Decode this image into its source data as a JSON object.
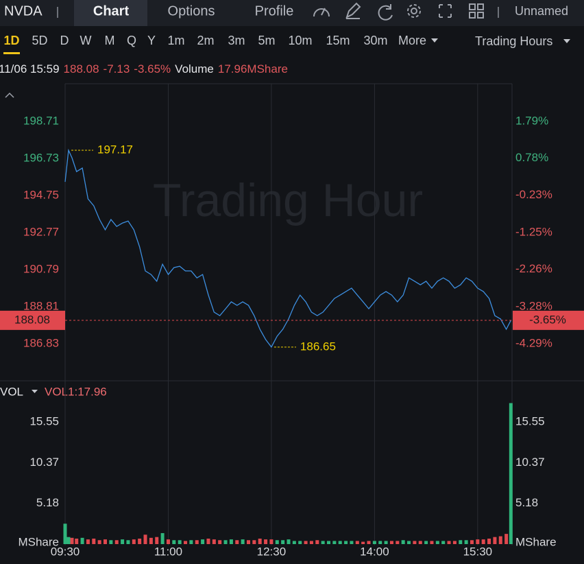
{
  "toolbar": {
    "symbol": "NVDA",
    "tabs": [
      "Chart",
      "Options",
      "Profile"
    ],
    "layout_name": "Unnamed"
  },
  "intervals": {
    "items": [
      "1D",
      "5D",
      "D",
      "W",
      "M",
      "Q",
      "Y",
      "1m",
      "2m",
      "3m",
      "5m",
      "10m",
      "15m",
      "30m"
    ],
    "more": "More",
    "session": "Trading Hours"
  },
  "quote": {
    "time": "11/06 15:59",
    "price": "188.08",
    "change": "-7.13",
    "change_pct": "-3.65%",
    "volume_label": "Volume",
    "volume": "17.96MShare"
  },
  "chart_data": [
    {
      "type": "line",
      "watermark": "Trading Hour",
      "color": "#3d8fe0",
      "x": [
        "09:30",
        "09:33",
        "09:36",
        "09:40",
        "09:45",
        "09:50",
        "09:55",
        "10:00",
        "10:05",
        "10:10",
        "10:15",
        "10:20",
        "10:25",
        "10:30",
        "10:35",
        "10:40",
        "10:45",
        "10:50",
        "10:55",
        "11:00",
        "11:05",
        "11:10",
        "11:15",
        "11:20",
        "11:25",
        "11:30",
        "11:35",
        "11:40",
        "11:45",
        "11:50",
        "11:55",
        "12:00",
        "12:05",
        "12:10",
        "12:15",
        "12:20",
        "12:25",
        "12:30",
        "12:35",
        "12:40",
        "12:45",
        "12:50",
        "12:55",
        "13:00",
        "13:05",
        "13:10",
        "13:15",
        "13:20",
        "13:25",
        "13:30",
        "13:35",
        "13:40",
        "13:45",
        "13:50",
        "13:55",
        "14:00",
        "14:05",
        "14:10",
        "14:15",
        "14:20",
        "14:25",
        "14:30",
        "14:35",
        "14:40",
        "14:45",
        "14:50",
        "14:55",
        "15:00",
        "15:05",
        "15:10",
        "15:15",
        "15:20",
        "15:25",
        "15:30",
        "15:35",
        "15:40",
        "15:45",
        "15:50",
        "15:55",
        "15:59"
      ],
      "values": [
        195.48,
        197.17,
        196.77,
        196.03,
        196.22,
        194.57,
        194.2,
        193.47,
        192.92,
        193.47,
        193.1,
        193.28,
        193.39,
        192.92,
        192.0,
        190.72,
        190.53,
        190.17,
        191.08,
        190.53,
        190.9,
        190.97,
        190.72,
        190.72,
        190.35,
        190.53,
        189.43,
        188.52,
        188.33,
        188.7,
        189.07,
        188.88,
        189.07,
        188.88,
        188.33,
        187.6,
        187.05,
        186.65,
        187.23,
        187.6,
        188.15,
        188.88,
        189.43,
        189.07,
        188.52,
        188.33,
        188.52,
        188.88,
        189.25,
        189.43,
        189.62,
        189.8,
        189.43,
        189.07,
        188.7,
        189.07,
        189.43,
        189.62,
        189.43,
        189.07,
        189.43,
        190.35,
        190.17,
        189.98,
        190.17,
        189.8,
        190.17,
        190.35,
        190.17,
        189.8,
        189.98,
        190.35,
        190.17,
        189.8,
        189.62,
        189.25,
        188.33,
        188.15,
        187.6,
        188.08
      ],
      "xlim": [
        "09:30",
        "16:00"
      ],
      "xticks": [
        "09:30",
        "11:00",
        "12:30",
        "14:00",
        "15:30"
      ],
      "ylim": [
        185.03,
        200.73
      ],
      "yticks": [
        198.71,
        196.73,
        194.75,
        192.77,
        190.79,
        188.81,
        186.83
      ],
      "y2lim": [
        -5.21,
        2.82
      ],
      "y2ticks": [
        {
          "value": 1.79,
          "label": "1.79%"
        },
        {
          "value": 0.78,
          "label": "0.78%"
        },
        {
          "value": -0.23,
          "label": "-0.23%"
        },
        {
          "value": -1.25,
          "label": "-1.25%"
        },
        {
          "value": -2.26,
          "label": "-2.26%"
        },
        {
          "value": -3.28,
          "label": "-3.28%"
        },
        {
          "value": -4.29,
          "label": "-4.29%"
        }
      ],
      "grid": "x"
    },
    {
      "type": "bar",
      "title": "VOL",
      "legend": "VOL1:17.96",
      "unit": "MShare",
      "up_color": "#2fb67c",
      "down_color": "#e0484e",
      "values": [
        2.6,
        0.9,
        0.8,
        0.7,
        0.8,
        0.6,
        0.7,
        0.5,
        0.6,
        0.5,
        0.5,
        0.6,
        0.5,
        0.6,
        0.7,
        1.2,
        0.8,
        0.9,
        1.4,
        0.6,
        0.5,
        0.5,
        0.4,
        0.5,
        0.5,
        0.6,
        0.7,
        0.6,
        0.5,
        0.5,
        0.6,
        0.5,
        0.6,
        0.5,
        0.5,
        0.7,
        0.6,
        0.6,
        0.5,
        0.5,
        0.6,
        0.4,
        0.4,
        0.4,
        0.4,
        0.5,
        0.4,
        0.4,
        0.4,
        0.4,
        0.4,
        0.4,
        0.4,
        0.3,
        0.4,
        0.4,
        0.4,
        0.4,
        0.4,
        0.4,
        0.5,
        0.4,
        0.4,
        0.4,
        0.4,
        0.4,
        0.4,
        0.4,
        0.4,
        0.4,
        0.5,
        0.5,
        0.5,
        0.6,
        0.6,
        0.7,
        0.9,
        1.0,
        1.3,
        17.96
      ],
      "ylim": [
        0,
        20.8
      ],
      "yticks": [
        5.18,
        10.37,
        15.55
      ]
    }
  ]
}
